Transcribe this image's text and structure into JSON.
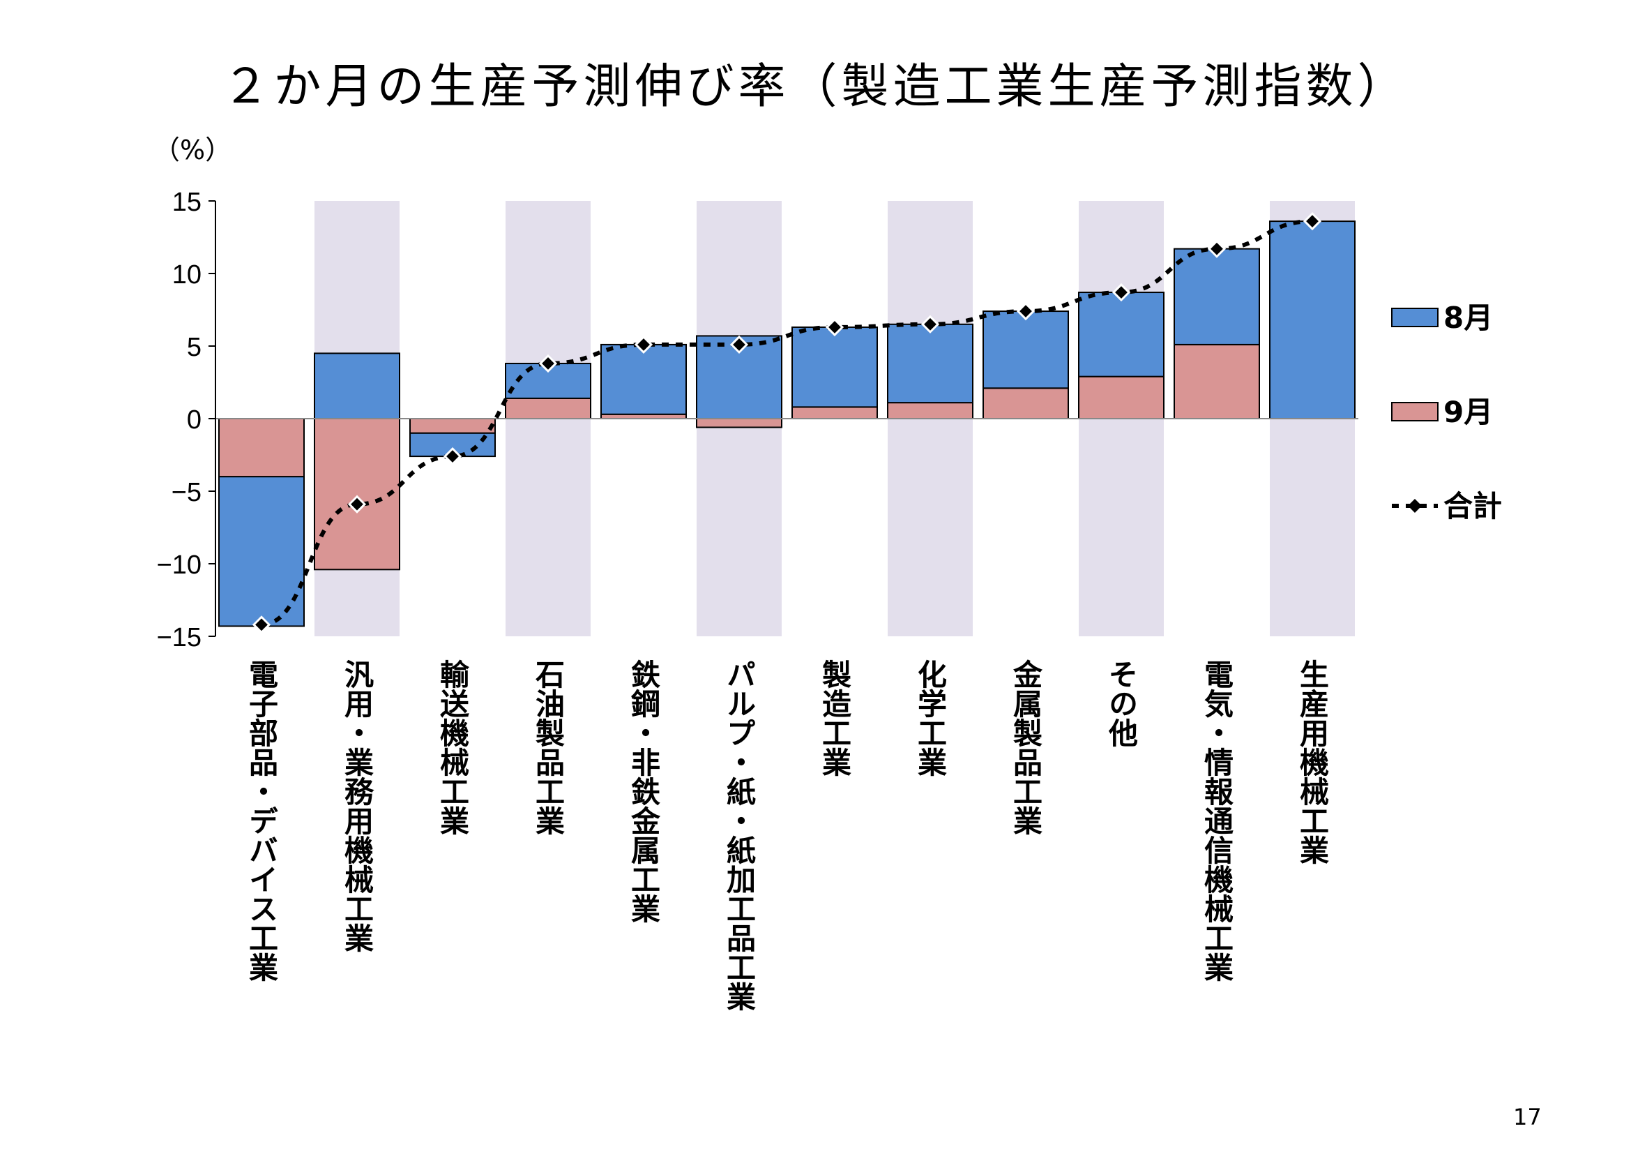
{
  "page": {
    "title": "２か月の生産予測伸び率（製造工業生産予測指数）",
    "page_number": "17"
  },
  "colors": {
    "aug": "#558ed5",
    "sep": "#d99594",
    "band": "#e3dfec",
    "line": "#000000"
  },
  "chart_data": {
    "type": "bar",
    "stacked": true,
    "unit_label": "（%）",
    "ylim": [
      -15,
      15
    ],
    "yticks": [
      15,
      10,
      5,
      0,
      -5,
      -10,
      -15
    ],
    "ytick_labels": [
      "15",
      "10",
      "5",
      "0",
      "−5",
      "−10",
      "−15"
    ],
    "categories": [
      "電子部品・デバイス工業",
      "汎用・業務用機械工業",
      "輸送機械工業",
      "石油製品工業",
      "鉄鋼・非鉄金属工業",
      "パルプ・紙・紙加工品工業",
      "製造工業",
      "化学工業",
      "金属製品工業",
      "その他",
      "電気・情報通信機械工業",
      "生産用機械工業"
    ],
    "shaded_categories": [
      1,
      3,
      5,
      7,
      9,
      11
    ],
    "series": [
      {
        "name": "9月",
        "type": "bar",
        "values": [
          -4.0,
          -10.4,
          -1.0,
          1.4,
          0.3,
          -0.6,
          0.8,
          1.1,
          2.1,
          2.9,
          5.1,
          0.0
        ]
      },
      {
        "name": "8月",
        "type": "bar",
        "values": [
          -10.3,
          4.5,
          -1.6,
          2.4,
          4.8,
          5.7,
          5.5,
          5.4,
          5.3,
          5.8,
          6.6,
          13.6
        ]
      },
      {
        "name": "合計",
        "type": "line",
        "values": [
          -14.2,
          -5.9,
          -2.6,
          3.8,
          5.1,
          5.1,
          6.3,
          6.5,
          7.4,
          8.7,
          11.7,
          13.6
        ]
      }
    ],
    "legend": {
      "position": "right",
      "entries": [
        "8月",
        "9月",
        "合計"
      ]
    }
  }
}
